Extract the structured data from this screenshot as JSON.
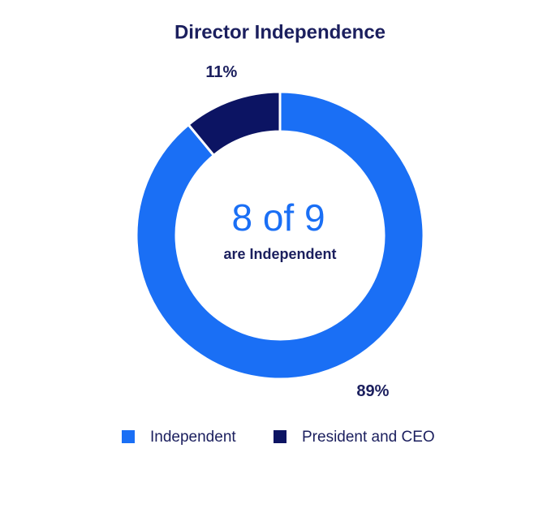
{
  "chart_data": {
    "type": "donut",
    "title": "Director Independence",
    "center_text": "8 of 9",
    "center_subtext": "are Independent",
    "categories": [
      "Independent",
      "President and CEO"
    ],
    "values": [
      89,
      11
    ],
    "value_labels": [
      "89%",
      "11%"
    ],
    "colors": [
      "#1a6ff5",
      "#0c1463"
    ]
  }
}
